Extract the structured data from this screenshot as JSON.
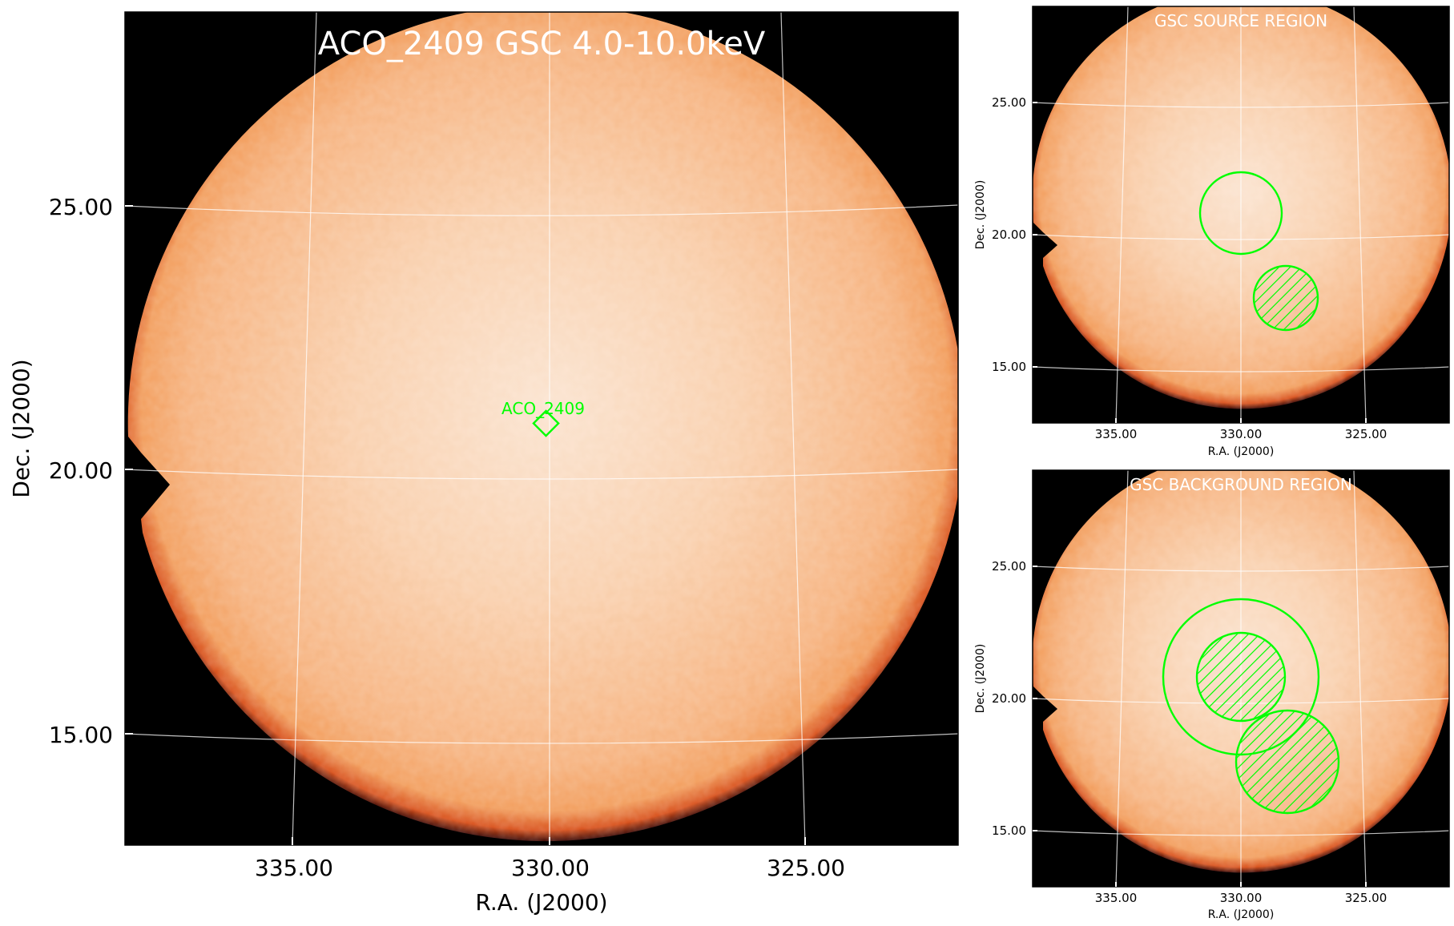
{
  "colors": {
    "background": "#000000",
    "image_core": "#fbe2cc",
    "image_mid": "#f7b98a",
    "image_edge": "#f09a55",
    "image_rim": "#c0310a",
    "region": "#00ff00",
    "grid": "#ffffff"
  },
  "main_panel": {
    "title": "ACO_2409 GSC 4.0-10.0keV",
    "xlabel": "R.A. (J2000)",
    "ylabel": "Dec. (J2000)",
    "xticks": [
      "335.00",
      "330.00",
      "325.00"
    ],
    "yticks": [
      "25.00",
      "20.00",
      "15.00"
    ],
    "source_label": "ACO_2409"
  },
  "source_panel": {
    "title": "GSC SOURCE REGION",
    "xlabel": "R.A. (J2000)",
    "ylabel": "Dec. (J2000)",
    "xticks": [
      "335.00",
      "330.00",
      "325.00"
    ],
    "yticks": [
      "25.00",
      "20.00",
      "15.00"
    ]
  },
  "background_panel": {
    "title": "GSC BACKGROUND REGION",
    "xlabel": "R.A. (J2000)",
    "ylabel": "Dec. (J2000)",
    "xticks": [
      "335.00",
      "330.00",
      "325.00"
    ],
    "yticks": [
      "25.00",
      "20.00",
      "15.00"
    ]
  }
}
